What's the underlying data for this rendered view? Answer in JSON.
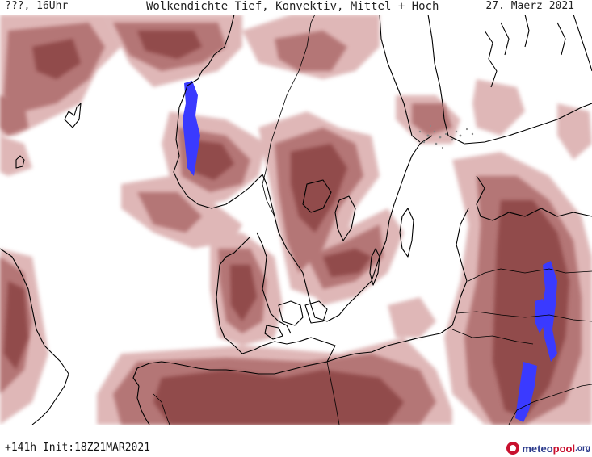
{
  "header": {
    "left": "???, 16Uhr",
    "title": "Wolkendichte  Tief, Konvektiv, Mittel + Hoch",
    "date": "27. Maerz 2021"
  },
  "footer": {
    "run_info": "+141h Init:18Z21MAR2021"
  },
  "logo": {
    "part1": "meteo",
    "part2": "pool",
    "part3": ".org"
  },
  "colors": {
    "cloud_dark": "#8e4545",
    "cloud_mid": "#a86363",
    "cloud_light": "#c99393",
    "cloud_pale": "#e6c3c3",
    "high_overlay": "#3333ff",
    "coastline": "#000000"
  }
}
